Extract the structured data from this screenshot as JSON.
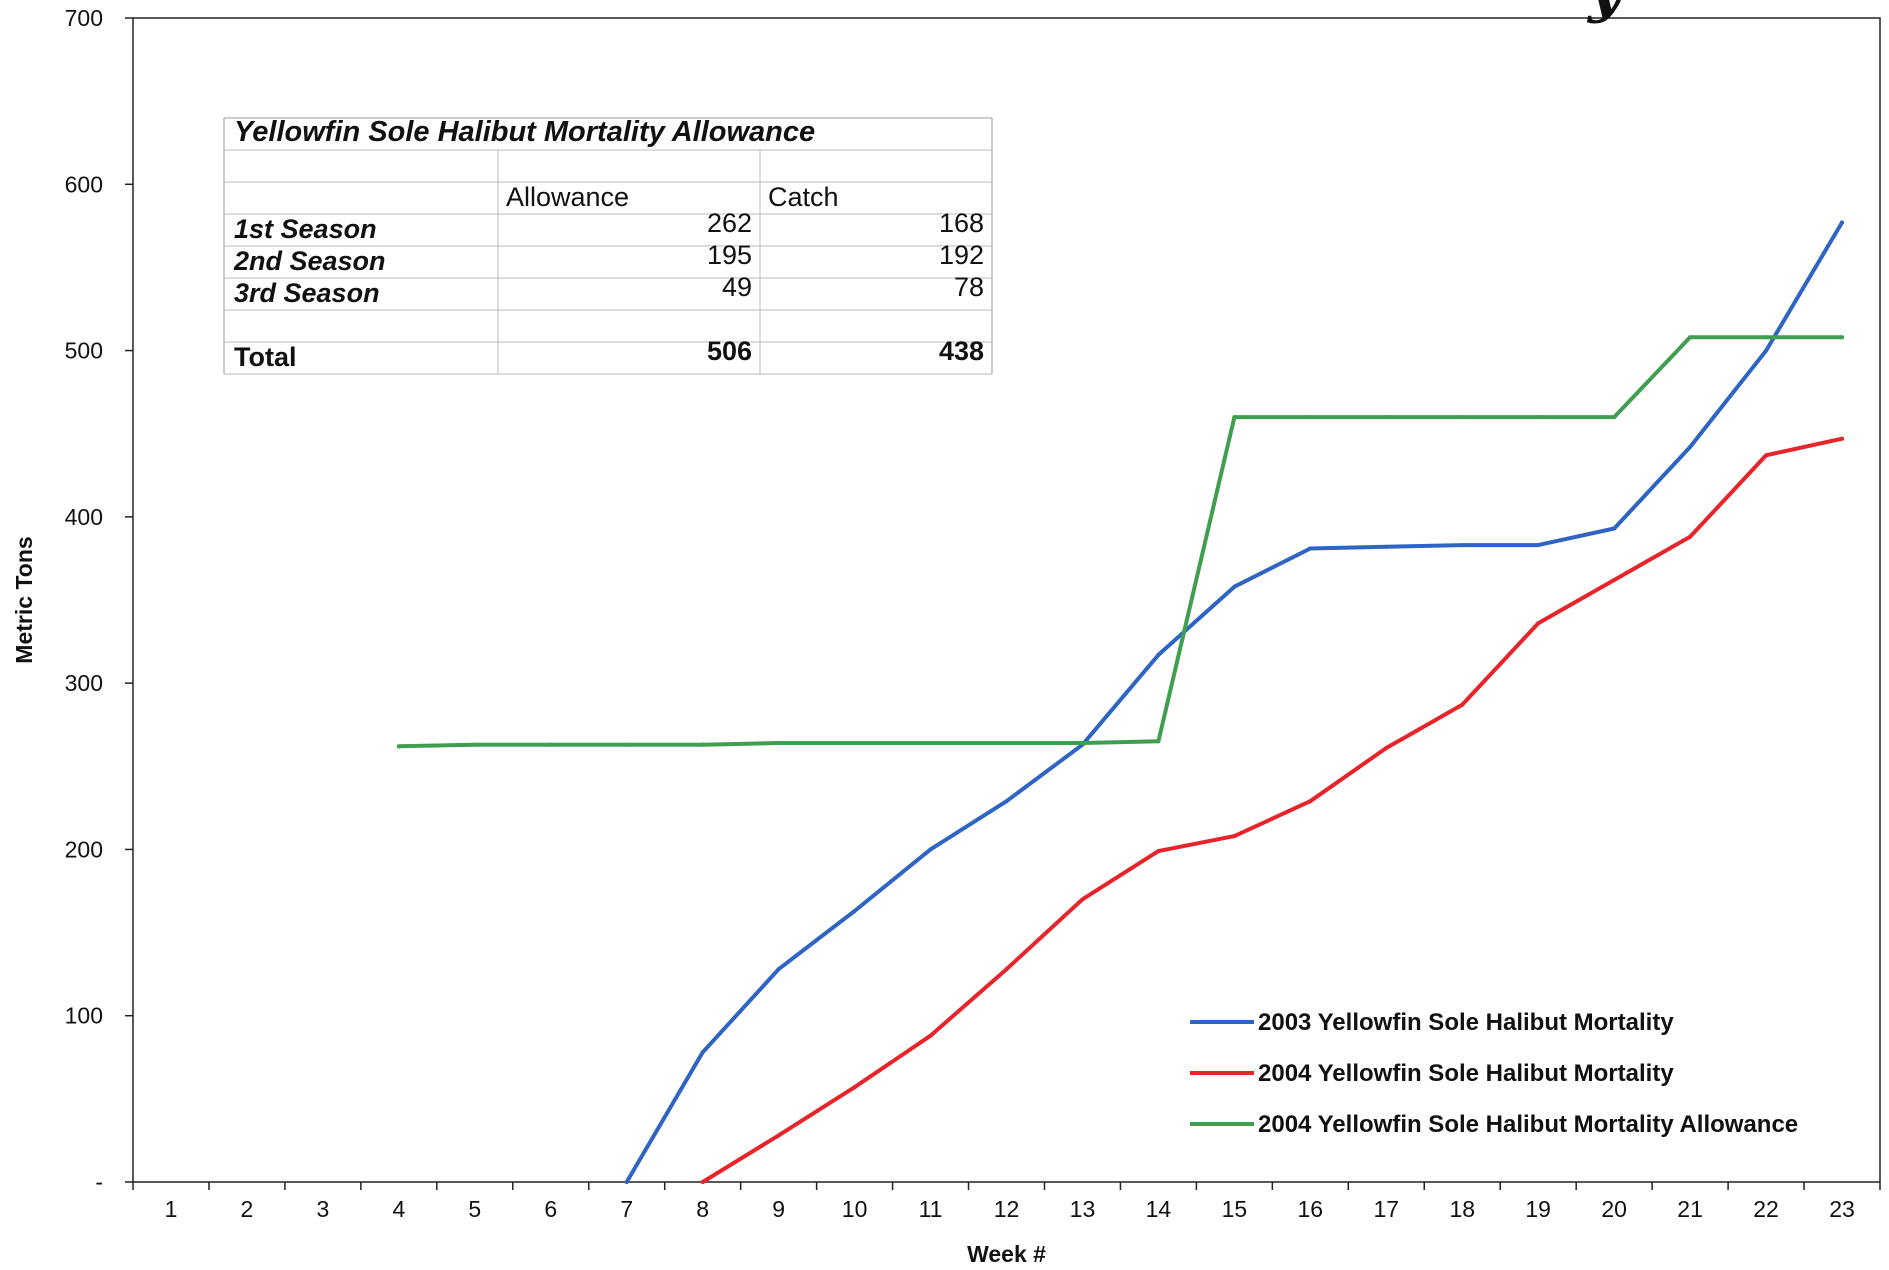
{
  "chart_data": {
    "type": "line",
    "title": "",
    "xlabel": "Week #",
    "ylabel": "Metric Tons",
    "ylim": [
      0,
      700
    ],
    "ytick_labels": [
      "-",
      "100",
      "200",
      "300",
      "400",
      "500",
      "600",
      "700"
    ],
    "yticks": [
      0,
      100,
      200,
      300,
      400,
      500,
      600,
      700
    ],
    "categories": [
      "1",
      "2",
      "3",
      "4",
      "5",
      "6",
      "7",
      "8",
      "9",
      "10",
      "11",
      "12",
      "13",
      "14",
      "15",
      "16",
      "17",
      "18",
      "19",
      "20",
      "21",
      "22",
      "23"
    ],
    "grid": false,
    "legend_position": "bottom-right",
    "corner_text": "y",
    "series": [
      {
        "name": "2003 Yellowfin Sole Halibut Mortality",
        "color": "#2e64c4",
        "x": [
          7,
          8,
          9,
          10,
          11,
          12,
          13,
          14,
          15,
          16,
          17,
          18,
          19,
          20,
          21,
          22,
          23
        ],
        "values": [
          0,
          78,
          128,
          163,
          200,
          229,
          263,
          317,
          358,
          381,
          382,
          383,
          383,
          393,
          442,
          500,
          577
        ]
      },
      {
        "name": "2004 Yellowfin Sole Halibut Mortality",
        "color": "#e8232a",
        "x": [
          8,
          9,
          10,
          11,
          12,
          13,
          14,
          15,
          16,
          17,
          18,
          19,
          20,
          21,
          22,
          23
        ],
        "values": [
          0,
          28,
          57,
          88,
          128,
          170,
          199,
          208,
          229,
          261,
          287,
          336,
          362,
          388,
          437,
          447
        ]
      },
      {
        "name": "2004 Yellowfin Sole Halibut Mortality Allowance",
        "color": "#3f9e4f",
        "x": [
          4,
          5,
          6,
          7,
          8,
          9,
          10,
          11,
          12,
          13,
          14,
          15,
          16,
          17,
          18,
          19,
          20,
          21,
          22,
          23
        ],
        "values": [
          262,
          263,
          263,
          263,
          263,
          264,
          264,
          264,
          264,
          264,
          265,
          460,
          460,
          460,
          460,
          460,
          460,
          508,
          508,
          508
        ]
      }
    ],
    "table": {
      "title": "Yellowfin Sole Halibut Mortality Allowance",
      "columns": [
        "",
        "Allowance",
        "Catch"
      ],
      "rows": [
        {
          "label": "1st Season",
          "allowance": "262",
          "catch": "168"
        },
        {
          "label": "2nd Season",
          "allowance": "195",
          "catch": "192"
        },
        {
          "label": "3rd Season",
          "allowance": "49",
          "catch": "78"
        },
        {
          "label": "",
          "allowance": "",
          "catch": ""
        },
        {
          "label": "Total",
          "allowance": "506",
          "catch": "438"
        }
      ]
    }
  }
}
